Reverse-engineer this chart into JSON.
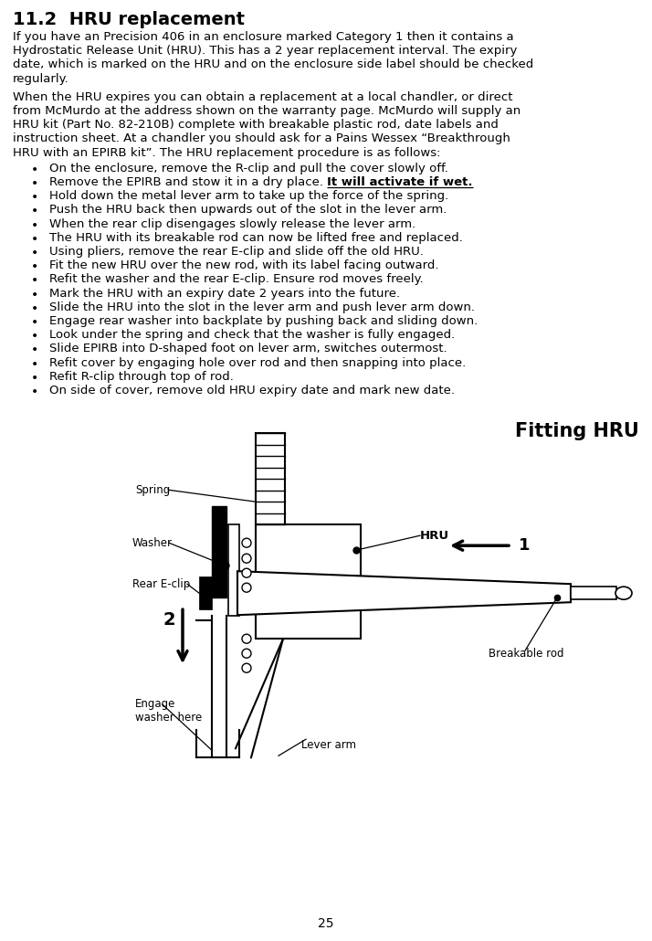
{
  "title": "11.2  HRU replacement",
  "para1_lines": [
    "If you have an Precision 406 in an enclosure marked Category 1 then it contains a",
    "Hydrostatic Release Unit (HRU). This has a 2 year replacement interval. The expiry",
    "date, which is marked on the HRU and on the enclosure side label should be checked",
    "regularly."
  ],
  "para2_lines": [
    "When the HRU expires you can obtain a replacement at a local chandler, or direct",
    "from McMurdo at the address shown on the warranty page. McMurdo will supply an",
    "HRU kit (Part No. 82-210B) complete with breakable plastic rod, date labels and",
    "instruction sheet. At a chandler you should ask for a Pains Wessex “Breakthrough",
    "HRU with an EPIRB kit”. The HRU replacement procedure is as follows:"
  ],
  "bullets": [
    {
      "normal": "On the enclosure, remove the R-clip and pull the cover slowly off.",
      "bold": null
    },
    {
      "normal": "Remove the EPIRB and stow it in a dry place. ",
      "bold": "It will activate if wet."
    },
    {
      "normal": "Hold down the metal lever arm to take up the force of the spring.",
      "bold": null
    },
    {
      "normal": "Push the HRU back then upwards out of the slot in the lever arm.",
      "bold": null
    },
    {
      "normal": "When the rear clip disengages slowly release the lever arm.",
      "bold": null
    },
    {
      "normal": "The HRU with its breakable rod can now be lifted free and replaced.",
      "bold": null
    },
    {
      "normal": "Using pliers, remove the rear E-clip and slide off the old HRU.",
      "bold": null
    },
    {
      "normal": "Fit the new HRU over the new rod, with its label facing outward.",
      "bold": null
    },
    {
      "normal": "Refit the washer and the rear E-clip. Ensure rod moves freely.",
      "bold": null
    },
    {
      "normal": "Mark the HRU with an expiry date 2 years into the future.",
      "bold": null
    },
    {
      "normal": "Slide the HRU into the slot in the lever arm and push lever arm down.",
      "bold": null
    },
    {
      "normal": "Engage rear washer into backplate by pushing back and sliding down.",
      "bold": null
    },
    {
      "normal": "Look under the spring and check that the washer is fully engaged.",
      "bold": null
    },
    {
      "normal": "Slide EPIRB into D-shaped foot on lever arm, switches outermost.",
      "bold": null
    },
    {
      "normal": "Refit cover by engaging hole over rod and then snapping into place.",
      "bold": null
    },
    {
      "normal": "Refit R-clip through top of rod.",
      "bold": null
    },
    {
      "normal": "On side of cover, remove old HRU expiry date and mark new date.",
      "bold": null
    }
  ],
  "diagram_title": "Fitting HRU",
  "page_number": "25",
  "bg_color": "#ffffff",
  "text_color": "#000000",
  "title_fontsize": 14,
  "body_fontsize": 9.5,
  "bullet_fontsize": 9.5,
  "label_fontsize": 8.5
}
